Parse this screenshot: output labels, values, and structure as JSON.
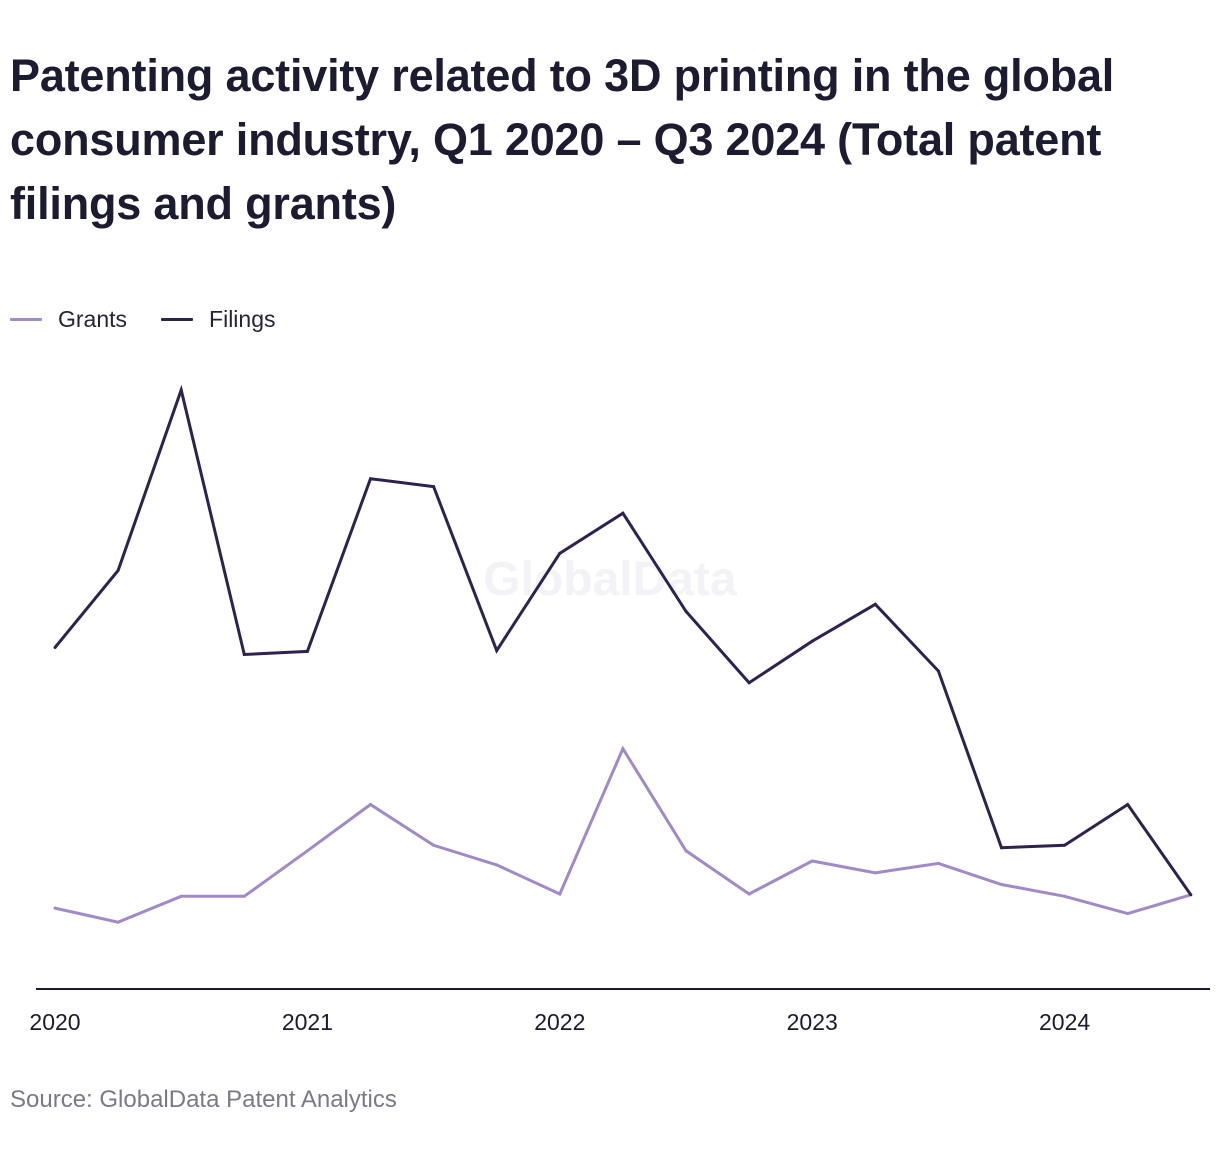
{
  "title": "Patenting activity related to 3D printing in the global consumer industry, Q1 2020 – Q3 2024 (Total patent filings and grants)",
  "source": "Source: GlobalData Patent Analytics",
  "watermark": "GlobalData",
  "colors": {
    "grants": "#a18ac8",
    "filings": "#2e2250",
    "axis": "#1b1a2e"
  },
  "chart_data": {
    "type": "line",
    "x": [
      "Q1 2020",
      "Q2 2020",
      "Q3 2020",
      "Q4 2020",
      "Q1 2021",
      "Q2 2021",
      "Q3 2021",
      "Q4 2021",
      "Q1 2022",
      "Q2 2022",
      "Q3 2022",
      "Q4 2022",
      "Q1 2023",
      "Q2 2023",
      "Q3 2023",
      "Q4 2023",
      "Q1 2024",
      "Q2 2024",
      "Q3 2024"
    ],
    "x_tick_labels": [
      "2020",
      "2021",
      "2022",
      "2023",
      "2024"
    ],
    "ylim": [
      0,
      100
    ],
    "grid": false,
    "legend_position": "top-left",
    "series": [
      {
        "name": "Grants",
        "values": [
          34.0,
          32.2,
          35.5,
          35.5,
          41.3,
          47.2,
          42.0,
          39.5,
          35.8,
          54.3,
          41.3,
          35.8,
          40.0,
          38.5,
          39.7,
          37.0,
          35.5,
          33.3,
          35.7
        ]
      },
      {
        "name": "Filings",
        "values": [
          67.2,
          77.0,
          100.0,
          66.3,
          66.7,
          88.7,
          87.7,
          66.8,
          79.2,
          84.3,
          71.8,
          62.7,
          68.0,
          72.7,
          64.2,
          41.7,
          42.0,
          47.2,
          35.7
        ]
      }
    ]
  }
}
